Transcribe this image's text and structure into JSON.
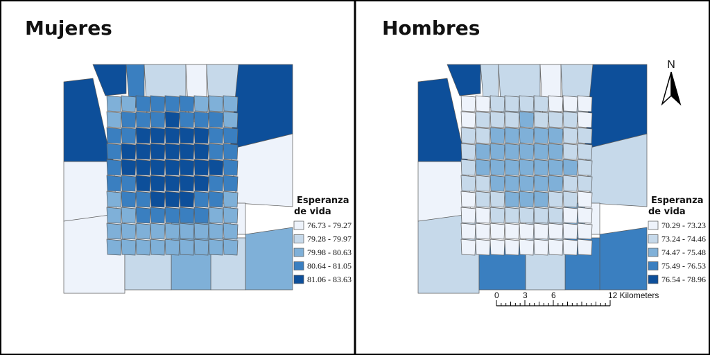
{
  "panels": [
    {
      "title": "Mujeres",
      "legend": {
        "title_line1": "Esperanza",
        "title_line2": "de vida",
        "classes": [
          {
            "label": "76.73 - 79.27",
            "color": "#eef3fb"
          },
          {
            "label": "79.28 - 79.97",
            "color": "#c6d9ea"
          },
          {
            "label": "79.98 - 80.63",
            "color": "#7fb0d8"
          },
          {
            "label": "80.64 - 81.05",
            "color": "#3a7fc0"
          },
          {
            "label": "81.06 - 83.63",
            "color": "#0d4f9a"
          }
        ]
      }
    },
    {
      "title": "Hombres",
      "legend": {
        "title_line1": "Esperanza",
        "title_line2": "de vida",
        "classes": [
          {
            "label": "70.29 - 73.23",
            "color": "#eef3fb"
          },
          {
            "label": "73.24 - 74.46",
            "color": "#c6d9ea"
          },
          {
            "label": "74.47 - 75.48",
            "color": "#7fb0d8"
          },
          {
            "label": "75.49 - 76.53",
            "color": "#3a7fc0"
          },
          {
            "label": "76.54 - 78.96",
            "color": "#0d4f9a"
          }
        ]
      }
    }
  ],
  "north_arrow": "N",
  "scale_bar": {
    "labels": [
      "0",
      "3",
      "6",
      "12 Kilometers"
    ]
  }
}
